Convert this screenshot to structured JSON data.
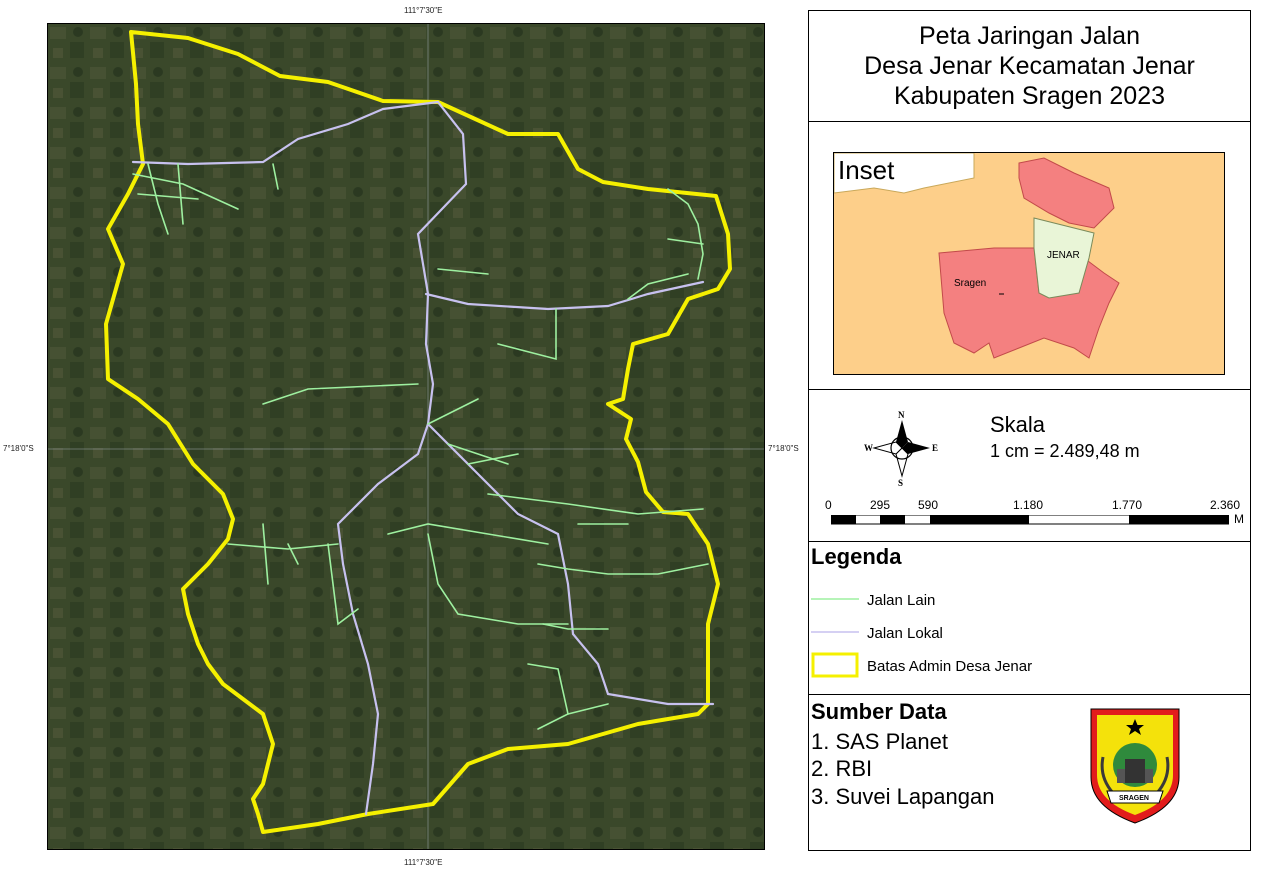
{
  "coordinates": {
    "lon_top": "111°7'30\"E",
    "lon_bottom": "111°7'30\"E",
    "lat_left": "7°18'0\"S",
    "lat_right": "7°18'0\"S"
  },
  "title": {
    "line1": "Peta Jaringan Jalan",
    "line2": "Desa Jenar Kecamatan Jenar",
    "line3": "Kabupaten Sragen 2023"
  },
  "inset": {
    "label": "Inset",
    "region_jenar": "JENAR",
    "region_sragen": "Sragen",
    "colors": {
      "background": "#fdcf8a",
      "districts": "#f48080",
      "jenar": "#e9f5d7"
    }
  },
  "scale": {
    "title": "Skala",
    "ratio": "1 cm = 2.489,48 m",
    "ticks": [
      "0",
      "295",
      "590",
      "1.180",
      "1.770",
      "2.360"
    ],
    "unit": "M",
    "north_arrow": {
      "n": "N",
      "s": "S",
      "e": "E",
      "w": "W"
    }
  },
  "legend": {
    "title": "Legenda",
    "items": [
      {
        "label": "Jalan Lain",
        "color": "#9ef0a0",
        "type": "line"
      },
      {
        "label": "Jalan Lokal",
        "color": "#c7c1ef",
        "type": "line"
      },
      {
        "label": "Batas Admin Desa Jenar",
        "color": "#f5f000",
        "type": "polygon"
      }
    ]
  },
  "sources": {
    "title": "Sumber Data",
    "items": [
      "1. SAS Planet",
      "2. RBI",
      "3. Suvei Lapangan"
    ]
  },
  "logo": {
    "text": "SRAGEN"
  },
  "map": {
    "boundary_color": "#f5f000",
    "local_road_color": "#c7c1ef",
    "other_road_color": "#9ef0a0"
  }
}
